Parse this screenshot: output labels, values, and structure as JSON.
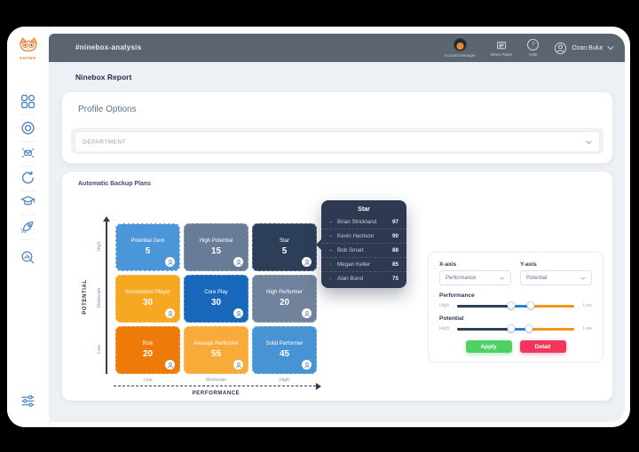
{
  "window": {
    "title": "#ninebox-analysis"
  },
  "header": {
    "items": [
      {
        "label": "Account Manager",
        "icon": "avatar"
      },
      {
        "label": "News Paper",
        "icon": "newspaper"
      },
      {
        "label": "Help",
        "icon": "help-circle"
      }
    ],
    "help_glyph": "?",
    "user_name": "Ozan Bulut"
  },
  "sidebar": {
    "logo_text": "sorwe",
    "icons": [
      "dashboard",
      "engagement",
      "announcement",
      "history",
      "learning",
      "rocket",
      "analytics-search"
    ],
    "footer_icon": "filters"
  },
  "page": {
    "title": "Ninebox Report"
  },
  "profile_options": {
    "title": "Profile Options",
    "department_value": "DEPARTMENT"
  },
  "ninebox": {
    "section_title": "Automatic Backup Plans",
    "y_axis": {
      "label": "POTENTIAL",
      "ticks": [
        "High",
        "Moderate",
        "Low"
      ]
    },
    "x_axis": {
      "label": "PERFORMANCE",
      "ticks": [
        "Low",
        "Moderate",
        "High"
      ]
    },
    "cells": [
      {
        "label": "Potential Gem",
        "value": "5",
        "color": "#4a96d8",
        "selected": true
      },
      {
        "label": "High Potential",
        "value": "15",
        "color": "#687c97",
        "selected": false
      },
      {
        "label": "Star",
        "value": "5",
        "color": "#2d3e58",
        "selected": false
      },
      {
        "label": "Inconsistent Player",
        "value": "30",
        "color": "#f7a823",
        "selected": false
      },
      {
        "label": "Core Play",
        "value": "30",
        "color": "#1767bb",
        "selected": false
      },
      {
        "label": "High Performer",
        "value": "20",
        "color": "#71839c",
        "selected": false
      },
      {
        "label": "Risk",
        "value": "20",
        "color": "#ee7b09",
        "selected": false
      },
      {
        "label": "Average Performer",
        "value": "55",
        "color": "#f8ab38",
        "selected": false
      },
      {
        "label": "Solid Performer",
        "value": "45",
        "color": "#4793d3",
        "selected": false
      }
    ]
  },
  "tooltip": {
    "title": "Star",
    "rows": [
      {
        "name": "Brian Strickland",
        "score": "97",
        "trend": "flat"
      },
      {
        "name": "Kevin Harrison",
        "score": "90",
        "trend": "flat"
      },
      {
        "name": "Bob Smart",
        "score": "88",
        "trend": "flat"
      },
      {
        "name": "Megan Keller",
        "score": "85",
        "trend": "up"
      },
      {
        "name": "Alan Bond",
        "score": "75",
        "trend": "down"
      }
    ]
  },
  "controls": {
    "x_axis": {
      "label": "X-axis",
      "value": "Performance"
    },
    "y_axis": {
      "label": "Y-axis",
      "value": "Potential"
    },
    "sliders": [
      {
        "label": "Performance",
        "left_label": "High",
        "right_label": "Low",
        "handles": [
          46,
          63
        ]
      },
      {
        "label": "Potential",
        "left_label": "High",
        "right_label": "Low",
        "handles": [
          46,
          61
        ]
      }
    ],
    "apply_label": "Apply",
    "detail_label": "Detail"
  },
  "colors": {
    "header_bg": "#5b6571",
    "content_bg": "#edf0f4",
    "accent_navy": "#2d3e58",
    "accent_blue": "#2f80d0",
    "accent_orange": "#f5941f",
    "apply_green": "#50d166",
    "detail_red": "#f2355b",
    "logo_orange": "#ef8b3d",
    "sidebar_icon_blue": "#4e86c6",
    "tooltip_bg": "#2d3a52",
    "trend_flat": "#4fa3e3",
    "trend_up": "#3fd37a",
    "trend_down": "#f25767"
  }
}
